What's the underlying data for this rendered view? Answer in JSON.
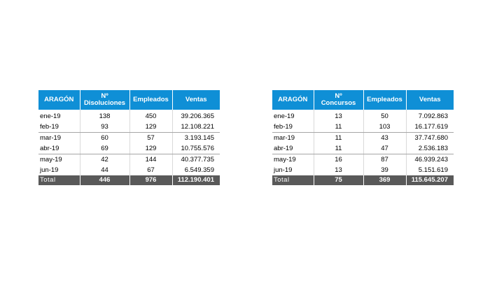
{
  "left_table": {
    "headers": {
      "region": "ARAGÓN",
      "count_line1": "Nº",
      "count_line2": "Disoluciones",
      "employees": "Empleados",
      "sales": "Ventas"
    },
    "rows": [
      {
        "month": "ene-19",
        "count": "138",
        "employees": "450",
        "sales": "39.206.365"
      },
      {
        "month": "feb-19",
        "count": "93",
        "employees": "129",
        "sales": "12.108.221"
      },
      {
        "month": "mar-19",
        "count": "60",
        "employees": "57",
        "sales": "3.193.145"
      },
      {
        "month": "abr-19",
        "count": "69",
        "employees": "129",
        "sales": "10.755.576"
      },
      {
        "month": "may-19",
        "count": "42",
        "employees": "144",
        "sales": "40.377.735"
      },
      {
        "month": "jun-19",
        "count": "44",
        "employees": "67",
        "sales": "6.549.359"
      }
    ],
    "total": {
      "label": "Total",
      "count": "446",
      "employees": "976",
      "sales": "112.190.401"
    }
  },
  "right_table": {
    "headers": {
      "region": "ARAGÓN",
      "count_line1": "Nº",
      "count_line2": "Concursos",
      "employees": "Empleados",
      "sales": "Ventas"
    },
    "rows": [
      {
        "month": "ene-19",
        "count": "13",
        "employees": "50",
        "sales": "7.092.863"
      },
      {
        "month": "feb-19",
        "count": "11",
        "employees": "103",
        "sales": "16.177.619"
      },
      {
        "month": "mar-19",
        "count": "11",
        "employees": "43",
        "sales": "37.747.680"
      },
      {
        "month": "abr-19",
        "count": "11",
        "employees": "47",
        "sales": "2.536.183"
      },
      {
        "month": "may-19",
        "count": "16",
        "employees": "87",
        "sales": "46.939.243"
      },
      {
        "month": "jun-19",
        "count": "13",
        "employees": "39",
        "sales": "5.151.619"
      }
    ],
    "total": {
      "label": "Total",
      "count": "75",
      "employees": "369",
      "sales": "115.645.207"
    }
  },
  "colors": {
    "header_bg": "#0f8fd6",
    "total_bg": "#595959"
  }
}
